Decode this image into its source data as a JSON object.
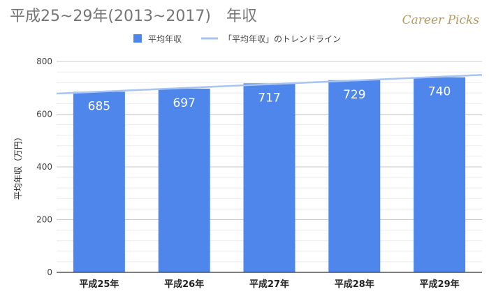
{
  "brand": "Career Picks",
  "colors": {
    "bar": "#4f86ec",
    "trend": "#a8c4f0",
    "grid_major": "#c9c9c9",
    "grid_minor": "#ececec",
    "axis": "#333333"
  },
  "chart_data": {
    "type": "bar",
    "title": "平成25~29年(2013~2017)　年収",
    "ylabel": "平均年収（万円）",
    "xlabel": "",
    "categories": [
      "平成25年",
      "平成26年",
      "平成27年",
      "平成28年",
      "平成29年"
    ],
    "series": [
      {
        "name": "平均年収",
        "values": [
          685,
          697,
          717,
          729,
          740
        ]
      }
    ],
    "trendline": {
      "name": "「平均年収」のトレンドライン",
      "type": "linear"
    },
    "ylim": [
      0,
      800
    ],
    "yticks": [
      0,
      200,
      400,
      600,
      800
    ],
    "minor_gridlines_per_major": 5,
    "grid": true,
    "legend": "top"
  }
}
